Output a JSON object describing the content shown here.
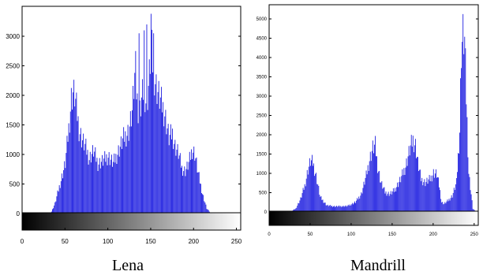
{
  "chart_data": [
    {
      "type": "bar",
      "title": "",
      "caption": "Lena",
      "xlabel": "",
      "ylabel": "",
      "xlim": [
        0,
        255
      ],
      "ylim": [
        0,
        3400
      ],
      "xticks": [
        "0",
        "50",
        "100",
        "150",
        "200",
        "250"
      ],
      "yticks": [
        "0",
        "500",
        "1000",
        "1500",
        "2000",
        "2500",
        "3000"
      ],
      "grid": false,
      "colorbar": "grayscale 0-255 below x axis",
      "bar_color": "#1f1fe0",
      "envelope_x": [
        25,
        33,
        38,
        44,
        50,
        54,
        57,
        59,
        61,
        63,
        66,
        69,
        73,
        78,
        83,
        88,
        94,
        100,
        106,
        112,
        118,
        124,
        128,
        131,
        136,
        139,
        142,
        145,
        148,
        150,
        152,
        156,
        160,
        166,
        171,
        175,
        178,
        182,
        186,
        190,
        194,
        198,
        201,
        205,
        210,
        215,
        220,
        225
      ],
      "envelope_y": [
        0,
        0,
        200,
        600,
        1000,
        1700,
        2300,
        2420,
        2350,
        2100,
        1700,
        1500,
        1350,
        1100,
        1250,
        1000,
        1050,
        1150,
        1000,
        1250,
        1500,
        1650,
        2000,
        2650,
        1900,
        2250,
        2500,
        2150,
        2750,
        3380,
        3000,
        2550,
        2300,
        2000,
        1500,
        1600,
        1350,
        1200,
        900,
        850,
        1000,
        1280,
        1200,
        800,
        400,
        100,
        0,
        0
      ],
      "spikes": [
        [
          132,
          2750
        ],
        [
          136,
          3050
        ],
        [
          142,
          3100
        ],
        [
          145,
          3200
        ],
        [
          150,
          3380
        ],
        [
          153,
          3050
        ]
      ]
    },
    {
      "type": "bar",
      "title": "",
      "caption": "Mandrill",
      "xlabel": "",
      "ylabel": "",
      "xlim": [
        0,
        255
      ],
      "ylim": [
        0,
        5400
      ],
      "xticks": [
        "0",
        "50",
        "100",
        "150",
        "200",
        "250"
      ],
      "yticks": [
        "0",
        "500",
        "1000",
        "1500",
        "2000",
        "2500",
        "3000",
        "3500",
        "4000",
        "4500",
        "5000"
      ],
      "grid": false,
      "colorbar": "grayscale 0-255 below x axis",
      "bar_color": "#1f1fe0",
      "envelope_x": [
        20,
        25,
        32,
        38,
        43,
        47,
        50,
        53,
        57,
        62,
        70,
        80,
        95,
        105,
        112,
        118,
        122,
        126,
        129,
        132,
        136,
        141,
        147,
        152,
        160,
        166,
        171,
        175,
        178,
        181,
        185,
        190,
        196,
        200,
        204,
        207,
        210,
        213,
        218,
        223,
        228,
        232,
        234,
        236,
        238,
        240,
        243,
        248,
        252
      ],
      "envelope_y": [
        0,
        0,
        100,
        400,
        800,
        1300,
        1550,
        1500,
        1100,
        450,
        200,
        170,
        180,
        300,
        550,
        1100,
        1600,
        1950,
        2020,
        1400,
        900,
        600,
        550,
        650,
        1000,
        1400,
        1900,
        2200,
        2050,
        1500,
        1000,
        900,
        1000,
        1200,
        1150,
        800,
        300,
        250,
        350,
        500,
        900,
        2500,
        5000,
        5400,
        5200,
        3500,
        1200,
        100,
        0
      ]
    }
  ]
}
